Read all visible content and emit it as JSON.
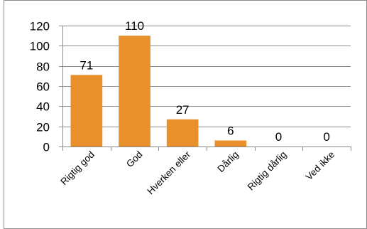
{
  "chart_data": {
    "type": "bar",
    "categories": [
      "Rigtig god",
      "God",
      "Hverken eller",
      "Dårlig",
      "Rigtig dårlig",
      "Ved ikke"
    ],
    "values": [
      71,
      110,
      27,
      6,
      0,
      0
    ],
    "data_labels": [
      "71",
      "110",
      "27",
      "6",
      "0",
      "0"
    ],
    "title": "",
    "xlabel": "",
    "ylabel": "",
    "ylim": [
      0,
      120
    ],
    "yticks": [
      0,
      20,
      40,
      60,
      80,
      100,
      120
    ],
    "grid": true,
    "legend": "none",
    "bar_color": "#E8912C",
    "grid_color": "#8c8c8c",
    "frame_color": "#8c8c8c"
  }
}
